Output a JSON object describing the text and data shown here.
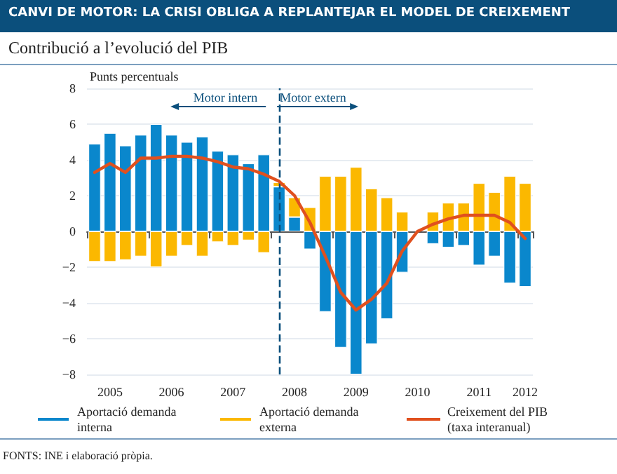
{
  "chart_data": {
    "type": "bar",
    "title": "CANVI DE MOTOR: LA CRISI OBLIGA A REPLANTEJAR EL MODEL DE CREIXEMENT",
    "subtitle": "Contribució a l’evolució del PIB",
    "ylabel": "Punts percentuals",
    "categories": [
      null,
      "2005",
      null,
      null,
      null,
      "2006",
      null,
      null,
      null,
      "2007",
      null,
      null,
      null,
      "2008",
      null,
      null,
      null,
      "2009",
      null,
      null,
      null,
      "2010",
      null,
      null,
      null,
      "2011",
      null,
      null,
      "2012"
    ],
    "stacked": true,
    "series": [
      {
        "name": "Aportació demanda interna",
        "color": "#0a87cc",
        "values": [
          4.9,
          5.5,
          4.8,
          5.4,
          6.0,
          5.4,
          5.0,
          5.3,
          4.5,
          4.3,
          3.8,
          4.3,
          2.5,
          0.8,
          -1.0,
          -4.5,
          -6.5,
          -8.0,
          -6.3,
          -4.9,
          -2.3,
          null,
          -0.7,
          -0.9,
          -0.8,
          -1.9,
          -1.4,
          -2.9,
          -3.1
        ]
      },
      {
        "name": "Aportació demanda externa",
        "color": "#fbb800",
        "values": [
          -1.7,
          -1.7,
          -1.6,
          -1.4,
          -2.0,
          -1.4,
          -0.8,
          -1.4,
          -0.6,
          -0.8,
          -0.5,
          -1.2,
          0.25,
          1.1,
          1.35,
          3.1,
          3.1,
          3.6,
          2.4,
          1.9,
          1.1,
          null,
          1.1,
          1.6,
          1.6,
          2.7,
          2.2,
          3.1,
          2.7
        ]
      },
      {
        "name": "Creixement del PIB (taxa interanual)",
        "type": "line",
        "color": "#e0501e",
        "values": [
          3.3,
          3.8,
          3.3,
          4.1,
          4.1,
          4.2,
          4.2,
          4.1,
          3.9,
          3.6,
          3.5,
          3.2,
          2.8,
          2.0,
          0.5,
          -1.4,
          -3.4,
          -4.4,
          -3.8,
          -2.9,
          -1.1,
          0.0,
          0.4,
          0.7,
          0.9,
          0.9,
          0.9,
          0.5,
          -0.4
        ]
      }
    ],
    "ylim": [
      -8,
      8
    ],
    "yticks": [
      -8,
      -6,
      -4,
      -2,
      0,
      2,
      4,
      6,
      8
    ],
    "grid": "y",
    "legend": "bottom",
    "marker": "none",
    "annotations": [
      "Motor intern",
      "Motor extern",
      "FONTS: INE i elaboració pròpia."
    ]
  }
}
